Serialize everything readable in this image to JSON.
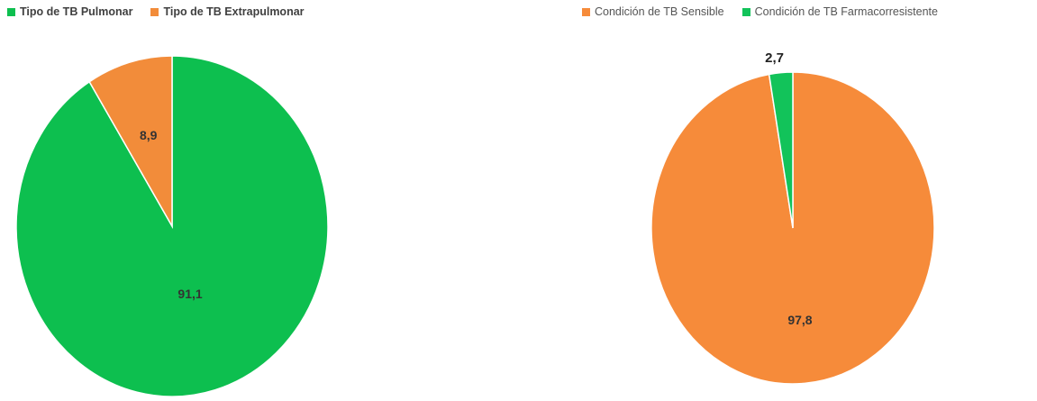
{
  "chart_data": [
    {
      "type": "pie",
      "title": "",
      "legend_placement": "top-left",
      "slices": [
        {
          "name": "Tipo de TB Pulmonar",
          "value": 91.1,
          "label": "91,1",
          "color": "#0dbf4f"
        },
        {
          "name": "Tipo de TB Extrapulmonar",
          "value": 8.9,
          "label": "8,9",
          "color": "#f28c3a"
        }
      ]
    },
    {
      "type": "pie",
      "title": "",
      "legend_placement": "top",
      "slices": [
        {
          "name": "Condición de TB Sensible",
          "value": 97.8,
          "label": "97,8",
          "color": "#f68b3a"
        },
        {
          "name": "Condición de TB Farmacorresistente",
          "value": 2.7,
          "label": "2,7",
          "color": "#12c35a"
        }
      ]
    }
  ]
}
